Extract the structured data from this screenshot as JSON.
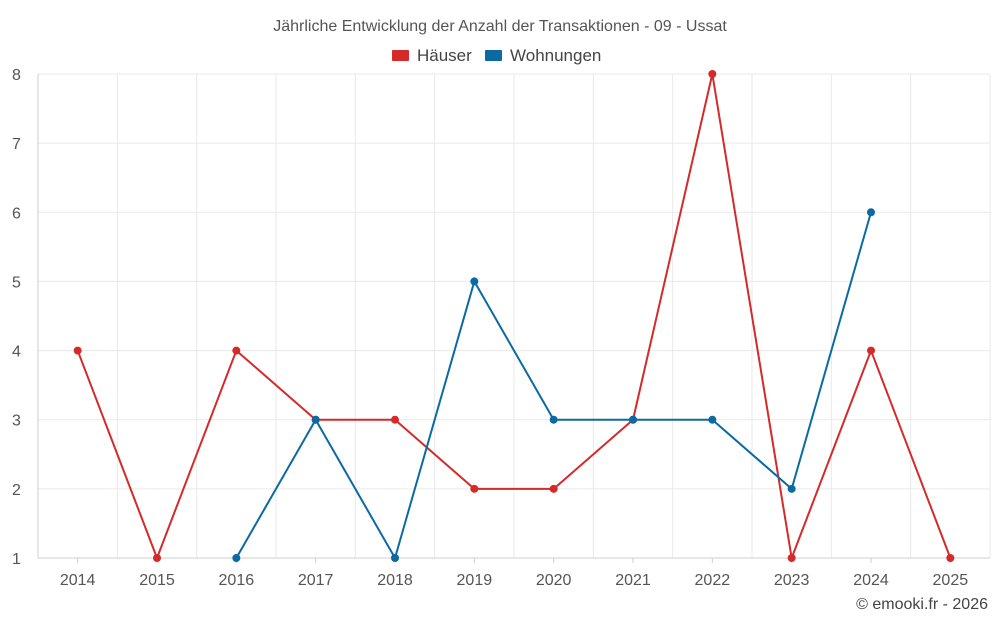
{
  "chart_data": {
    "type": "line",
    "title": "Jährliche Entwicklung der Anzahl der Transaktionen - 09 - Ussat",
    "categories": [
      "2014",
      "2015",
      "2016",
      "2017",
      "2018",
      "2019",
      "2020",
      "2021",
      "2022",
      "2023",
      "2024",
      "2025"
    ],
    "ylim": [
      1,
      8
    ],
    "yticks": [
      1,
      2,
      3,
      4,
      5,
      6,
      7,
      8
    ],
    "grid": true,
    "legend_position": "top-center",
    "series": [
      {
        "name": "Häuser",
        "color": "#d42a2a",
        "values": [
          4,
          1,
          4,
          3,
          3,
          2,
          2,
          3,
          8,
          1,
          4,
          1
        ]
      },
      {
        "name": "Wohnungen",
        "color": "#0b6aa2",
        "values": [
          null,
          null,
          1,
          3,
          1,
          5,
          3,
          3,
          3,
          2,
          6,
          null
        ]
      }
    ],
    "credit": "© emooki.fr - 2026"
  }
}
